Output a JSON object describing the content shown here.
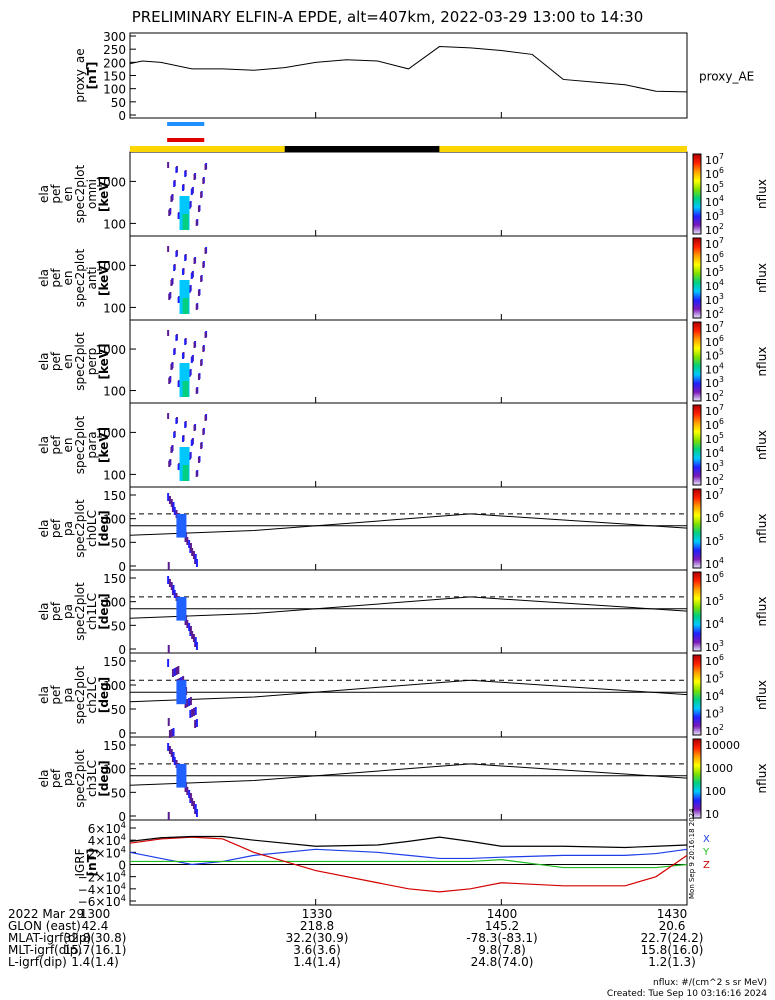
{
  "title": "PRELIMINARY ELFIN-A EPDE, alt=407km, 2022-03-29 13:00 to 14:30",
  "colors": {
    "state_yellow": "#ffd700",
    "state_black": "#000000",
    "bar_blue": "#1e90ff",
    "bar_red": "#e00000",
    "bx": "#1c3de8",
    "by": "#22bb22",
    "bz": "#d40000",
    "bt": "#000000"
  },
  "panels": [
    {
      "id": "proxy_ae",
      "ylabel": "proxy_ae\n[nT]",
      "yticks": [
        "300",
        "250",
        "200",
        "150",
        "100",
        "50",
        "0"
      ],
      "right_label": "proxy_AE"
    },
    {
      "id": "omni",
      "ylabel": "ela\npef\nen\nspec2plot\nomni\n[keV]",
      "yticks": [
        "1000",
        "100"
      ],
      "zticks": [
        "10^7",
        "10^6",
        "10^5",
        "10^4",
        "10^3",
        "10^2"
      ],
      "zlabel": "nflux"
    },
    {
      "id": "anti",
      "ylabel": "ela\npef\nen\nspec2plot\nanti\n[keV]",
      "yticks": [
        "1000",
        "100"
      ],
      "zticks": [
        "10^7",
        "10^6",
        "10^5",
        "10^4",
        "10^3",
        "10^2"
      ],
      "zlabel": "nflux"
    },
    {
      "id": "perp",
      "ylabel": "ela\npef\nen\nspec2plot\nperp\n[keV]",
      "yticks": [
        "1000",
        "100"
      ],
      "zticks": [
        "10^7",
        "10^6",
        "10^5",
        "10^4",
        "10^3",
        "10^2"
      ],
      "zlabel": "nflux"
    },
    {
      "id": "para",
      "ylabel": "ela\npef\nen\nspec2plot\npara\n[keV]",
      "yticks": [
        "1000",
        "100"
      ],
      "zticks": [
        "10^7",
        "10^6",
        "10^5",
        "10^4",
        "10^3",
        "10^2"
      ],
      "zlabel": "nflux"
    },
    {
      "id": "ch0",
      "ylabel": "ela\npef\npa\nspec2plot\nch0LC\n[deg]",
      "yticks": [
        "150",
        "100",
        "50",
        "0"
      ],
      "zticks": [
        "10^7",
        "10^6",
        "10^5",
        "10^4"
      ],
      "zlabel": "nflux"
    },
    {
      "id": "ch1",
      "ylabel": "ela\npef\npa\nspec2plot\nch1LC\n[deg]",
      "yticks": [
        "150",
        "100",
        "50",
        "0"
      ],
      "zticks": [
        "10^6",
        "10^5",
        "10^4",
        "10^3"
      ],
      "zlabel": "nflux"
    },
    {
      "id": "ch2",
      "ylabel": "ela\npef\npa\nspec2plot\nch2LC\n[deg]",
      "yticks": [
        "150",
        "100",
        "50",
        "0"
      ],
      "zticks": [
        "10^6",
        "10^5",
        "10^4",
        "10^3",
        "10^2"
      ],
      "zlabel": "nflux"
    },
    {
      "id": "ch3",
      "ylabel": "ela\npef\npa\nspec2plot\nch3LC\n[deg]",
      "yticks": [
        "150",
        "100",
        "50",
        "0"
      ],
      "zticks": [
        "10000",
        "1000",
        "100",
        "10"
      ],
      "zlabel": "nflux"
    },
    {
      "id": "igrf",
      "ylabel": "IGRF\n[nT]",
      "yticks": [
        "6×10^4",
        "4×10^4",
        "2×10^4",
        "0",
        "−2×10^4",
        "−4×10^4",
        "−6×10^4"
      ],
      "legend": [
        "X",
        "Y",
        "Z"
      ],
      "stamp": "Mon Sep 9 20:16:18 2024"
    }
  ],
  "footer": {
    "rows": [
      {
        "label": "2022 Mar 29",
        "values": [
          "1300",
          "1330",
          "1400",
          "1430"
        ]
      },
      {
        "label": "GLON (east)",
        "values": [
          "42.4",
          "218.8",
          "145.2",
          "20.6"
        ]
      },
      {
        "label": "MLAT-igrf(dip)",
        "values": [
          "32.8(30.8)",
          "32.2(30.9)",
          "-78.3(-83.1)",
          "22.7(24.2)"
        ]
      },
      {
        "label": "MLT-igrf(dip)",
        "values": [
          "15.7(16.1)",
          "3.6(3.6)",
          "9.8(7.8)",
          "15.8(16.0)"
        ]
      },
      {
        "label": "L-igrf(dip)",
        "values": [
          "1.4(1.4)",
          "1.4(1.4)",
          "24.8(74.0)",
          "1.2(1.3)"
        ]
      }
    ],
    "units_note": "nflux: #/(cm^2 s sr MeV)",
    "created": "Created: Tue Sep 10 03:16:16 2024"
  },
  "chart_data": {
    "type": "line",
    "x_range_minutes": [
      0,
      90
    ],
    "x_ticks": [
      "1300",
      "1330",
      "1400",
      "1430"
    ],
    "proxy_ae": {
      "ylim": [
        0,
        300
      ],
      "x": [
        0,
        2,
        5,
        10,
        15,
        20,
        25,
        30,
        35,
        40,
        45,
        50,
        55,
        60,
        65,
        70,
        75,
        80,
        85,
        90
      ],
      "values": [
        195,
        205,
        200,
        175,
        175,
        170,
        180,
        200,
        210,
        205,
        175,
        260,
        255,
        245,
        230,
        135,
        125,
        115,
        90,
        88
      ]
    },
    "igrf": {
      "ylim": [
        -60000,
        60000
      ],
      "x": [
        0,
        5,
        10,
        15,
        20,
        30,
        40,
        45,
        50,
        55,
        60,
        70,
        80,
        85,
        90
      ],
      "series": [
        {
          "name": "X",
          "values": [
            20000,
            10000,
            0,
            5000,
            15000,
            25000,
            20000,
            15000,
            10000,
            10000,
            12000,
            15000,
            15000,
            18000,
            25000
          ]
        },
        {
          "name": "Y",
          "values": [
            5000,
            5000,
            5000,
            5000,
            5000,
            5000,
            5000,
            5000,
            5000,
            5000,
            8000,
            -5000,
            -5000,
            -5000,
            0
          ]
        },
        {
          "name": "Z",
          "values": [
            35000,
            42000,
            45000,
            42000,
            20000,
            -10000,
            -30000,
            -40000,
            -45000,
            -40000,
            -30000,
            -35000,
            -35000,
            -20000,
            15000
          ]
        },
        {
          "name": "Bt",
          "values": [
            38000,
            44000,
            46000,
            46000,
            40000,
            30000,
            32000,
            38000,
            45000,
            38000,
            30000,
            30000,
            28000,
            30000,
            32000
          ]
        }
      ]
    },
    "lc_lines": {
      "loss_cone_x": [
        0,
        20,
        55,
        90
      ],
      "loss_cone": [
        65,
        75,
        110,
        80
      ],
      "dashed_level": 110,
      "solid_level": 85
    }
  }
}
